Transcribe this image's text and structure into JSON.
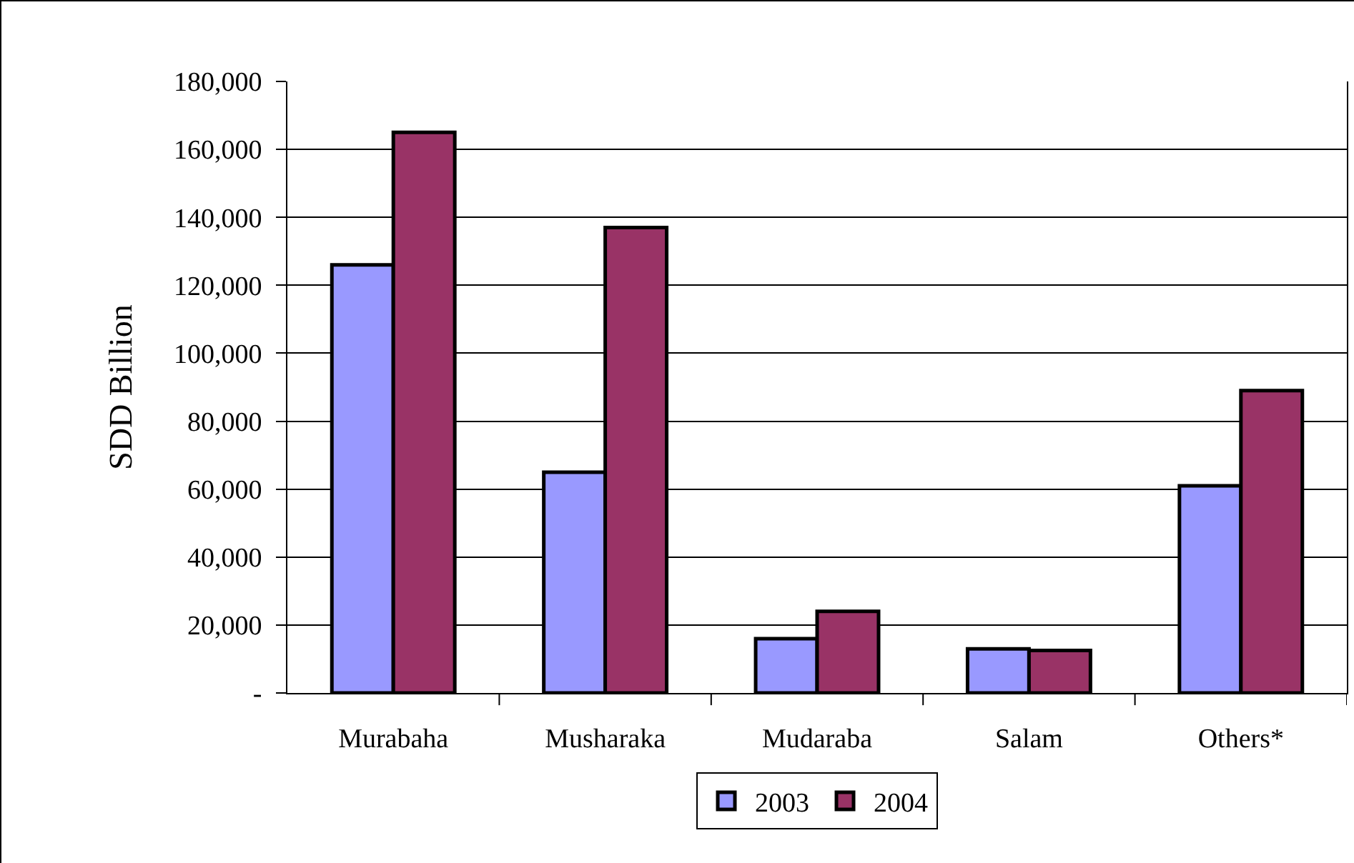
{
  "chart_data": {
    "type": "bar",
    "ylabel": "SDD Billion",
    "categories": [
      "Murabaha",
      "Musharaka",
      "Mudaraba",
      "Salam",
      "Others*"
    ],
    "series": [
      {
        "name": "2003",
        "color": "#9999ff",
        "values": [
          126000,
          65000,
          16000,
          13000,
          61000
        ]
      },
      {
        "name": "2004",
        "color": "#993366",
        "values": [
          165000,
          137000,
          24000,
          12500,
          89000
        ]
      }
    ],
    "ylim": [
      0,
      180000
    ],
    "yticks": [
      {
        "value": 0,
        "label": "-"
      },
      {
        "value": 20000,
        "label": "20,000"
      },
      {
        "value": 40000,
        "label": "40,000"
      },
      {
        "value": 60000,
        "label": "60,000"
      },
      {
        "value": 80000,
        "label": "80,000"
      },
      {
        "value": 100000,
        "label": "100,000"
      },
      {
        "value": 120000,
        "label": "120,000"
      },
      {
        "value": 140000,
        "label": "140,000"
      },
      {
        "value": 160000,
        "label": "160,000"
      },
      {
        "value": 180000,
        "label": "180,000"
      }
    ],
    "grid": "y",
    "legend": "bottom"
  }
}
